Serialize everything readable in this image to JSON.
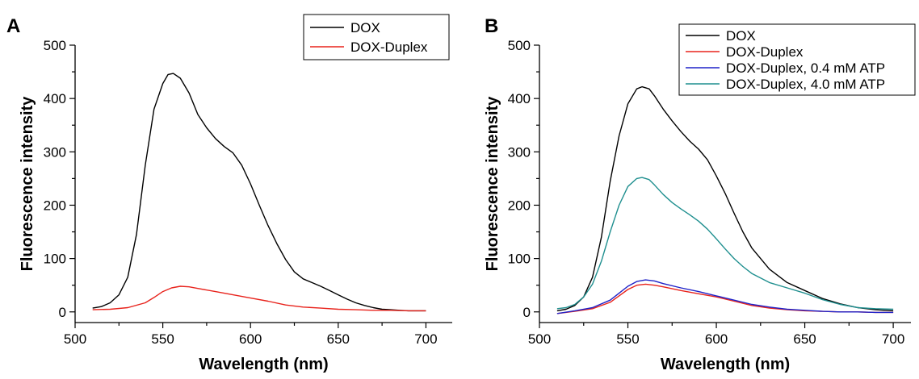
{
  "chart_data": [
    {
      "type": "line",
      "panel_label": "A",
      "xlabel": "Wavelength (nm)",
      "ylabel": "Fluorescence intensity",
      "xlim": [
        500,
        715
      ],
      "ylim": [
        -20,
        500
      ],
      "xticks": [
        500,
        550,
        600,
        650,
        700
      ],
      "yticks": [
        0,
        100,
        200,
        300,
        400,
        500
      ],
      "legend": "top-right",
      "grid": false,
      "series": [
        {
          "name": "DOX",
          "color": "#000000",
          "x": [
            510,
            515,
            520,
            525,
            530,
            535,
            540,
            545,
            550,
            553,
            556,
            560,
            565,
            570,
            575,
            580,
            585,
            590,
            595,
            600,
            605,
            610,
            615,
            620,
            625,
            630,
            635,
            640,
            645,
            650,
            655,
            660,
            665,
            670,
            675,
            680,
            685,
            690,
            695,
            700
          ],
          "y": [
            7,
            10,
            17,
            32,
            65,
            145,
            275,
            380,
            428,
            445,
            447,
            438,
            410,
            370,
            345,
            325,
            310,
            298,
            275,
            240,
            200,
            162,
            128,
            98,
            75,
            62,
            55,
            48,
            40,
            32,
            24,
            17,
            12,
            8,
            5,
            4,
            3,
            2,
            2,
            2
          ]
        },
        {
          "name": "DOX-Duplex",
          "color": "#e8231c",
          "x": [
            510,
            520,
            530,
            540,
            545,
            550,
            555,
            560,
            565,
            570,
            580,
            590,
            600,
            610,
            620,
            630,
            640,
            650,
            660,
            670,
            680,
            690,
            700
          ],
          "y": [
            4,
            5,
            8,
            17,
            27,
            38,
            45,
            48,
            47,
            44,
            38,
            32,
            26,
            20,
            13,
            9,
            7,
            5,
            4,
            3,
            3,
            2,
            2
          ]
        }
      ]
    },
    {
      "type": "line",
      "panel_label": "B",
      "xlabel": "Wavelength (nm)",
      "ylabel": "Fluorescence intensity",
      "xlim": [
        500,
        710
      ],
      "ylim": [
        -20,
        500
      ],
      "xticks": [
        500,
        550,
        600,
        650,
        700
      ],
      "yticks": [
        0,
        100,
        200,
        300,
        400,
        500
      ],
      "legend": "top-right",
      "grid": false,
      "series": [
        {
          "name": "DOX",
          "color": "#000000",
          "x": [
            510,
            515,
            520,
            525,
            530,
            535,
            540,
            545,
            550,
            555,
            558,
            562,
            565,
            570,
            575,
            580,
            585,
            590,
            595,
            600,
            605,
            610,
            615,
            620,
            630,
            640,
            650,
            660,
            670,
            680,
            690,
            700
          ],
          "y": [
            2,
            5,
            12,
            28,
            65,
            140,
            245,
            330,
            390,
            418,
            422,
            418,
            405,
            380,
            358,
            338,
            320,
            305,
            285,
            255,
            222,
            185,
            150,
            120,
            80,
            55,
            40,
            25,
            15,
            8,
            4,
            2
          ]
        },
        {
          "name": "DOX-Duplex",
          "color": "#e8231c",
          "x": [
            510,
            520,
            530,
            540,
            545,
            550,
            555,
            560,
            565,
            570,
            580,
            590,
            600,
            610,
            620,
            630,
            640,
            650,
            660,
            670,
            680,
            690,
            700
          ],
          "y": [
            -3,
            1,
            6,
            18,
            30,
            42,
            50,
            52,
            50,
            47,
            40,
            34,
            28,
            20,
            12,
            7,
            4,
            2,
            1,
            0,
            0,
            -1,
            -1
          ]
        },
        {
          "name": "DOX-Duplex, 0.4 mM ATP",
          "color": "#1f22c8",
          "x": [
            510,
            520,
            530,
            540,
            545,
            550,
            555,
            560,
            565,
            570,
            580,
            590,
            600,
            610,
            620,
            630,
            640,
            650,
            660,
            670,
            680,
            690,
            700
          ],
          "y": [
            -3,
            2,
            8,
            22,
            35,
            48,
            57,
            60,
            58,
            53,
            45,
            38,
            30,
            22,
            14,
            9,
            5,
            3,
            1,
            0,
            0,
            -1,
            -1
          ]
        },
        {
          "name": "DOX-Duplex, 4.0 mM ATP",
          "color": "#1f8f8f",
          "x": [
            510,
            515,
            520,
            525,
            530,
            535,
            540,
            545,
            550,
            555,
            558,
            562,
            565,
            570,
            575,
            580,
            585,
            590,
            595,
            600,
            605,
            610,
            615,
            620,
            630,
            640,
            650,
            660,
            670,
            680,
            690,
            700
          ],
          "y": [
            6,
            8,
            14,
            28,
            52,
            95,
            150,
            200,
            235,
            250,
            252,
            248,
            238,
            220,
            205,
            193,
            182,
            170,
            155,
            137,
            118,
            100,
            85,
            72,
            55,
            45,
            35,
            23,
            14,
            8,
            6,
            5
          ]
        }
      ]
    }
  ]
}
